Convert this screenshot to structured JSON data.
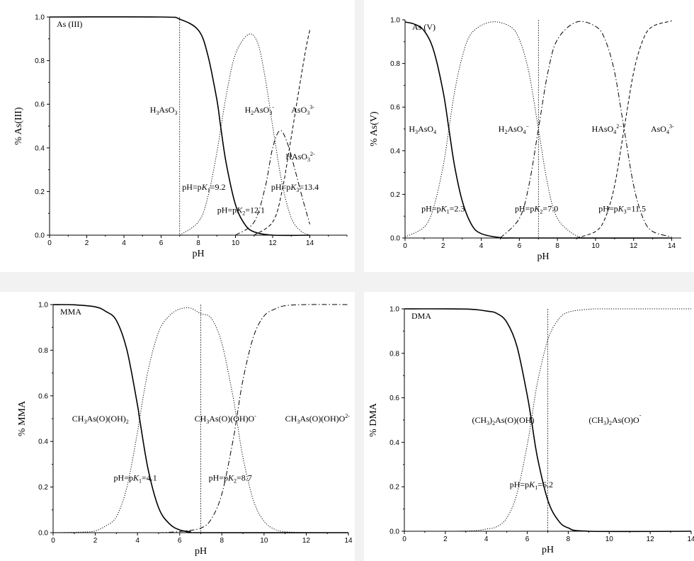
{
  "colors": {
    "background": "#ffffff",
    "curve": "#000000",
    "separator": "#f2f2f2"
  },
  "chart_data": [
    {
      "type": "line",
      "title": "As (III)",
      "xlabel": "pH",
      "ylabel": "% As(III)",
      "xlim": [
        0,
        16
      ],
      "ylim": [
        0,
        1
      ],
      "xticks": [
        0,
        2,
        4,
        6,
        8,
        10,
        12,
        14
      ],
      "yticks": [
        0.0,
        0.2,
        0.4,
        0.6,
        0.8,
        1.0
      ],
      "x_range_curves": [
        0,
        14
      ],
      "pKa": [
        9.2,
        12.1,
        13.4
      ],
      "vline_x": 7.0,
      "series": [
        {
          "name": "H3AsO3",
          "style": "solid",
          "points": [
            [
              0,
              1.0
            ],
            [
              6,
              1.0
            ],
            [
              7,
              0.99
            ],
            [
              8,
              0.94
            ],
            [
              8.5,
              0.83
            ],
            [
              9,
              0.62
            ],
            [
              9.2,
              0.5
            ],
            [
              9.5,
              0.33
            ],
            [
              10,
              0.14
            ],
            [
              10.5,
              0.05
            ],
            [
              11,
              0.015
            ],
            [
              12,
              0.0
            ],
            [
              14,
              0.0
            ]
          ]
        },
        {
          "name": "H2AsO3-",
          "style": "dotted",
          "points": [
            [
              7,
              0.0
            ],
            [
              8,
              0.06
            ],
            [
              8.5,
              0.17
            ],
            [
              9,
              0.38
            ],
            [
              9.5,
              0.64
            ],
            [
              10,
              0.83
            ],
            [
              10.7,
              0.92
            ],
            [
              11.2,
              0.88
            ],
            [
              11.6,
              0.72
            ],
            [
              12,
              0.5
            ],
            [
              12.5,
              0.24
            ],
            [
              13,
              0.08
            ],
            [
              13.5,
              0.02
            ],
            [
              14,
              0.0
            ]
          ]
        },
        {
          "name": "HAsO32-",
          "style": "dashdot",
          "points": [
            [
              10,
              0.0
            ],
            [
              11,
              0.06
            ],
            [
              11.6,
              0.22
            ],
            [
              12,
              0.4
            ],
            [
              12.4,
              0.48
            ],
            [
              12.8,
              0.42
            ],
            [
              13.2,
              0.3
            ],
            [
              13.6,
              0.17
            ],
            [
              14,
              0.05
            ]
          ]
        },
        {
          "name": "AsO33-",
          "style": "dashed",
          "points": [
            [
              11,
              0.0
            ],
            [
              12,
              0.06
            ],
            [
              12.5,
              0.2
            ],
            [
              13,
              0.45
            ],
            [
              13.4,
              0.66
            ],
            [
              13.8,
              0.86
            ],
            [
              14,
              0.94
            ]
          ]
        }
      ],
      "species_labels": [
        {
          "base": "H",
          "sub": "3",
          "base2": "AsO",
          "sub2": "3",
          "sup": "",
          "x": 5.4,
          "y": 0.575
        },
        {
          "base": "H",
          "sub": "2",
          "base2": "AsO",
          "sub2": "3",
          "sup": "-",
          "x": 10.5,
          "y": 0.575
        },
        {
          "base": "AsO",
          "sub": "3",
          "base2": "",
          "sub2": "",
          "sup": "3-",
          "x": 13.0,
          "y": 0.575
        },
        {
          "base": "HAsO",
          "sub": "3",
          "base2": "",
          "sub2": "",
          "sup": "2-",
          "x": 12.7,
          "y": 0.36
        }
      ],
      "pk_labels": [
        {
          "prefix": "pH=p",
          "K": "K",
          "sub": "1",
          "value": "=9.2",
          "x": 8.3,
          "y": 0.22
        },
        {
          "prefix": "pH=p",
          "K": "K",
          "sub": "2",
          "value": "=12.1",
          "x": 10.3,
          "y": 0.115
        },
        {
          "prefix": "pH=p",
          "K": "K",
          "sub": "3",
          "value": "=13.4",
          "x": 13.2,
          "y": 0.22
        }
      ]
    },
    {
      "type": "line",
      "title": "As (V)",
      "xlabel": "pH",
      "ylabel": "% As(V)",
      "xlim": [
        0,
        14.5
      ],
      "ylim": [
        0,
        1
      ],
      "xticks": [
        0,
        2,
        4,
        6,
        8,
        10,
        12,
        14
      ],
      "yticks": [
        0.0,
        0.2,
        0.4,
        0.6,
        0.8,
        1.0
      ],
      "x_range_curves": [
        0,
        14
      ],
      "pKa": [
        2.3,
        7.0,
        11.5
      ],
      "vline_x": 7.0,
      "series": [
        {
          "name": "H3AsO4",
          "style": "solid",
          "points": [
            [
              0,
              0.99
            ],
            [
              0.5,
              0.98
            ],
            [
              1,
              0.95
            ],
            [
              1.5,
              0.86
            ],
            [
              2,
              0.67
            ],
            [
              2.3,
              0.5
            ],
            [
              2.6,
              0.33
            ],
            [
              3,
              0.17
            ],
            [
              3.5,
              0.06
            ],
            [
              4,
              0.02
            ],
            [
              5,
              0.002
            ],
            [
              6,
              0.0
            ],
            [
              14,
              0.0
            ]
          ]
        },
        {
          "name": "H2AsO4-",
          "style": "dotted",
          "points": [
            [
              0,
              0.005
            ],
            [
              1,
              0.05
            ],
            [
              1.5,
              0.14
            ],
            [
              2,
              0.33
            ],
            [
              2.3,
              0.5
            ],
            [
              2.6,
              0.67
            ],
            [
              3,
              0.83
            ],
            [
              3.5,
              0.94
            ],
            [
              4.5,
              0.99
            ],
            [
              5.5,
              0.97
            ],
            [
              6,
              0.91
            ],
            [
              6.5,
              0.76
            ],
            [
              7,
              0.5
            ],
            [
              7.5,
              0.24
            ],
            [
              8,
              0.09
            ],
            [
              9,
              0.01
            ],
            [
              10,
              0.0
            ]
          ]
        },
        {
          "name": "HAsO42-",
          "style": "dashdot",
          "points": [
            [
              5,
              0.0
            ],
            [
              6,
              0.09
            ],
            [
              6.5,
              0.24
            ],
            [
              7,
              0.5
            ],
            [
              7.5,
              0.76
            ],
            [
              8,
              0.91
            ],
            [
              9,
              0.99
            ],
            [
              10,
              0.97
            ],
            [
              10.5,
              0.91
            ],
            [
              11,
              0.76
            ],
            [
              11.5,
              0.5
            ],
            [
              12,
              0.24
            ],
            [
              12.5,
              0.09
            ],
            [
              13,
              0.03
            ],
            [
              14,
              0.005
            ]
          ]
        },
        {
          "name": "AsO43-",
          "style": "dashed",
          "points": [
            [
              9,
              0.0
            ],
            [
              10,
              0.03
            ],
            [
              10.5,
              0.09
            ],
            [
              11,
              0.24
            ],
            [
              11.5,
              0.5
            ],
            [
              12,
              0.76
            ],
            [
              12.5,
              0.91
            ],
            [
              13,
              0.97
            ],
            [
              14,
              0.995
            ]
          ]
        }
      ],
      "species_labels": [
        {
          "base": "H",
          "sub": "3",
          "base2": "AsO",
          "sub2": "4",
          "sup": "",
          "x": 0.2,
          "y": 0.5
        },
        {
          "base": "H",
          "sub": "2",
          "base2": "AsO",
          "sub2": "4",
          "sup": "−",
          "x": 4.9,
          "y": 0.5
        },
        {
          "base": "HAsO",
          "sub": "4",
          "base2": "",
          "sub2": "",
          "sup": "2−",
          "x": 9.8,
          "y": 0.5
        },
        {
          "base": "AsO",
          "sub": "4",
          "base2": "",
          "sub2": "",
          "sup": "3-",
          "x": 12.9,
          "y": 0.5
        }
      ],
      "pk_labels": [
        {
          "prefix": "pH=p",
          "K": "K",
          "sub": "1",
          "value": "=2.3",
          "x": 2.0,
          "y": 0.135
        },
        {
          "prefix": "pH=p",
          "K": "K",
          "sub": "2",
          "value": "=7.0",
          "x": 6.9,
          "y": 0.135
        },
        {
          "prefix": "pH=p",
          "K": "K",
          "sub": "3",
          "value": "=11.5",
          "x": 11.4,
          "y": 0.135
        }
      ]
    },
    {
      "type": "line",
      "title": "MMA",
      "xlabel": "pH",
      "ylabel": "% MMA",
      "xlim": [
        0,
        14
      ],
      "ylim": [
        0,
        1
      ],
      "xticks": [
        0,
        2,
        4,
        6,
        8,
        10,
        12,
        14
      ],
      "yticks": [
        0.0,
        0.2,
        0.4,
        0.6,
        0.8,
        1.0
      ],
      "x_range_curves": [
        0,
        14
      ],
      "pKa": [
        4.1,
        8.7
      ],
      "vline_x": 7.0,
      "series": [
        {
          "name": "CH3As(O)(OH)2",
          "style": "solid",
          "points": [
            [
              0,
              1.0
            ],
            [
              1,
              0.999
            ],
            [
              2,
              0.99
            ],
            [
              2.5,
              0.97
            ],
            [
              3,
              0.93
            ],
            [
              3.5,
              0.8
            ],
            [
              4,
              0.56
            ],
            [
              4.1,
              0.5
            ],
            [
              4.5,
              0.28
            ],
            [
              5,
              0.11
            ],
            [
              5.5,
              0.04
            ],
            [
              6,
              0.012
            ],
            [
              6.5,
              0.004
            ],
            [
              7,
              0.0
            ],
            [
              14,
              0.0
            ]
          ]
        },
        {
          "name": "CH3As(O)(OH)O-",
          "style": "dotted",
          "points": [
            [
              0,
              0.0
            ],
            [
              1.5,
              0.003
            ],
            [
              2,
              0.008
            ],
            [
              2.5,
              0.03
            ],
            [
              3,
              0.07
            ],
            [
              3.5,
              0.2
            ],
            [
              4,
              0.44
            ],
            [
              4.1,
              0.5
            ],
            [
              4.5,
              0.71
            ],
            [
              5,
              0.88
            ],
            [
              5.5,
              0.95
            ],
            [
              6,
              0.98
            ],
            [
              6.5,
              0.985
            ],
            [
              7,
              0.96
            ],
            [
              7.5,
              0.94
            ],
            [
              8,
              0.83
            ],
            [
              8.5,
              0.61
            ],
            [
              8.7,
              0.5
            ],
            [
              9,
              0.33
            ],
            [
              9.5,
              0.14
            ],
            [
              10,
              0.05
            ],
            [
              10.5,
              0.015
            ],
            [
              11,
              0.004
            ],
            [
              12,
              0.0
            ]
          ]
        },
        {
          "name": "CH3As(O)(OH)O2-",
          "style": "dashdot",
          "points": [
            [
              5,
              0.0
            ],
            [
              6,
              0.005
            ],
            [
              7,
              0.02
            ],
            [
              7.5,
              0.06
            ],
            [
              8,
              0.17
            ],
            [
              8.5,
              0.39
            ],
            [
              8.7,
              0.5
            ],
            [
              9,
              0.67
            ],
            [
              9.5,
              0.86
            ],
            [
              10,
              0.95
            ],
            [
              10.5,
              0.98
            ],
            [
              11,
              0.995
            ],
            [
              12,
              1.0
            ],
            [
              14,
              1.0
            ]
          ]
        }
      ],
      "species_labels": [
        {
          "base": "CH",
          "sub": "3",
          "base2": "As(O)(OH)",
          "sub2": "2",
          "sup": "",
          "x": 0.9,
          "y": 0.5
        },
        {
          "base": "CH",
          "sub": "3",
          "base2": "As(O)(OH)O",
          "sub2": "",
          "sup": "-",
          "x": 6.7,
          "y": 0.5
        },
        {
          "base": "CH",
          "sub": "3",
          "base2": "As(O)(OH)O",
          "sub2": "",
          "sup": "2-",
          "x": 11.0,
          "y": 0.5
        }
      ],
      "pk_labels": [
        {
          "prefix": "pH=p",
          "K": "K",
          "sub": "1",
          "value": "=4.1",
          "x": 3.9,
          "y": 0.24
        },
        {
          "prefix": "pH=p",
          "K": "K",
          "sub": "2",
          "value": "=8.7",
          "x": 8.4,
          "y": 0.24
        }
      ]
    },
    {
      "type": "line",
      "title": "DMA",
      "xlabel": "pH",
      "ylabel": "% DMA",
      "xlim": [
        0,
        14
      ],
      "ylim": [
        0,
        1
      ],
      "xticks": [
        0,
        2,
        4,
        6,
        8,
        10,
        12,
        14
      ],
      "yticks": [
        0.0,
        0.2,
        0.4,
        0.6,
        0.8,
        1.0
      ],
      "x_range_curves": [
        0,
        14
      ],
      "pKa": [
        6.2
      ],
      "vline_x": 7.0,
      "series": [
        {
          "name": "(CH3)2As(O)(OH)",
          "style": "solid",
          "points": [
            [
              0,
              1.0
            ],
            [
              3,
              0.999
            ],
            [
              4,
              0.99
            ],
            [
              4.5,
              0.98
            ],
            [
              5,
              0.94
            ],
            [
              5.5,
              0.83
            ],
            [
              6,
              0.61
            ],
            [
              6.2,
              0.5
            ],
            [
              6.5,
              0.33
            ],
            [
              7,
              0.14
            ],
            [
              7.5,
              0.05
            ],
            [
              8,
              0.015
            ],
            [
              9,
              0.0
            ],
            [
              14,
              0.0
            ]
          ]
        },
        {
          "name": "(CH3)2As(O)O-",
          "style": "dotted",
          "points": [
            [
              2.5,
              0.0
            ],
            [
              3.5,
              0.003
            ],
            [
              4,
              0.01
            ],
            [
              4.5,
              0.02
            ],
            [
              5,
              0.06
            ],
            [
              5.5,
              0.17
            ],
            [
              6,
              0.39
            ],
            [
              6.2,
              0.5
            ],
            [
              6.5,
              0.67
            ],
            [
              7,
              0.86
            ],
            [
              7.5,
              0.95
            ],
            [
              8,
              0.985
            ],
            [
              9,
              0.998
            ],
            [
              10,
              1.0
            ],
            [
              14,
              1.0
            ]
          ]
        }
      ],
      "species_labels": [
        {
          "base": "(CH",
          "sub": "3",
          "base2": ")",
          "sub2": "2",
          "sup": "",
          "tail": "As(O)(OH)",
          "x": 3.3,
          "y": 0.5
        },
        {
          "base": "(CH",
          "sub": "3",
          "base2": ")",
          "sub2": "2",
          "sup": "-",
          "tail": "As(O)O",
          "x": 9.0,
          "y": 0.5
        }
      ],
      "pk_labels": [
        {
          "prefix": "pH=p",
          "K": "K",
          "sub": "1",
          "value": "=6.2",
          "x": 6.2,
          "y": 0.21
        }
      ]
    }
  ]
}
